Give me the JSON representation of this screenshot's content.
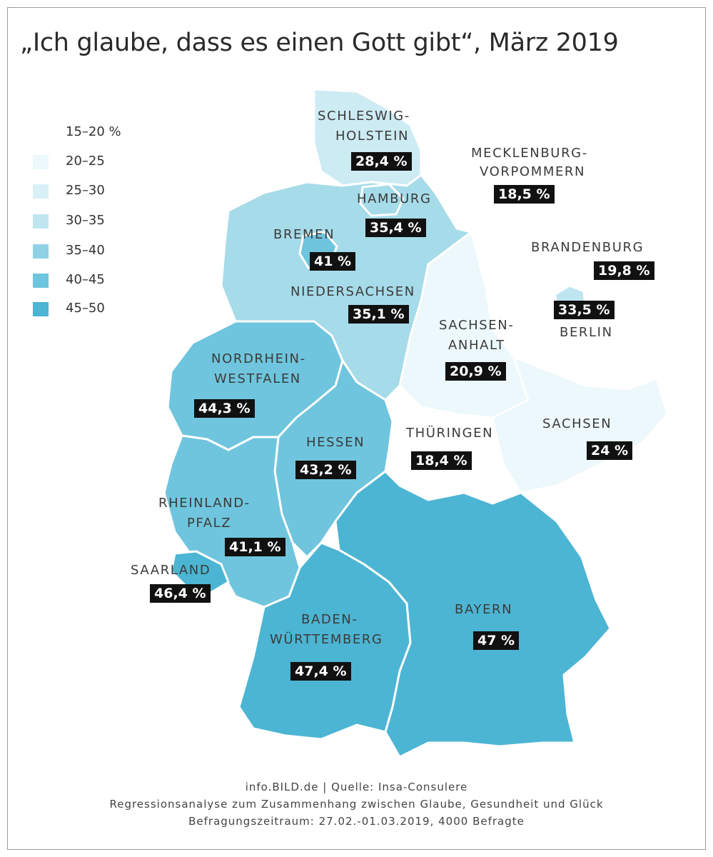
{
  "title": "„Ich glaube, dass es einen Gott gibt“, März 2019",
  "legend": [
    {
      "label": "15–20 %",
      "color": "#ffffff"
    },
    {
      "label": "20–25",
      "color": "#ecf8fb"
    },
    {
      "label": "25–30",
      "color": "#d8f0f6"
    },
    {
      "label": "30–35",
      "color": "#bfe5f0"
    },
    {
      "label": "35–40",
      "color": "#8fd2e5"
    },
    {
      "label": "40–45",
      "color": "#6fc5dd"
    },
    {
      "label": "45–50",
      "color": "#4cb5d3"
    }
  ],
  "states": {
    "schleswig_holstein": {
      "name_1": "SCHLESWIG-",
      "name_2": "HOLSTEIN",
      "value": "28,4 %",
      "color": "#cdebf3"
    },
    "mecklenburg_vorpommern": {
      "name_1": "MECKLENBURG-",
      "name_2": "VORPOMMERN",
      "value": "18,5 %",
      "color": "#ffffff"
    },
    "hamburg": {
      "name": "HAMBURG",
      "value": "35,4 %",
      "color": "#a6dbe9"
    },
    "bremen": {
      "name": "BREMEN",
      "value": "41 %",
      "color": "#6fc5dd"
    },
    "brandenburg": {
      "name": "BRANDENBURG",
      "value": "19,8 %",
      "color": "#ffffff"
    },
    "niedersachsen": {
      "name": "NIEDERSACHSEN",
      "value": "35,1 %",
      "color": "#a6dbe9"
    },
    "berlin": {
      "name": "BERLIN",
      "value": "33,5 %",
      "color": "#bfe5f0"
    },
    "sachsen_anhalt": {
      "name_1": "SACHSEN-",
      "name_2": "ANHALT",
      "value": "20,9 %",
      "color": "#ecf8fb"
    },
    "nordrhein_westfalen": {
      "name_1": "NORDRHEIN-",
      "name_2": "WESTFALEN",
      "value": "44,3 %",
      "color": "#6fc5dd"
    },
    "hessen": {
      "name": "HESSEN",
      "value": "43,2 %",
      "color": "#6fc5dd"
    },
    "thueringen": {
      "name": "THÜRINGEN",
      "value": "18,4 %",
      "color": "#ffffff"
    },
    "sachsen": {
      "name": "SACHSEN",
      "value": "24 %",
      "color": "#ecf8fb"
    },
    "rheinland_pfalz": {
      "name_1": "RHEINLAND-",
      "name_2": "PFALZ",
      "value": "41,1 %",
      "color": "#6fc5dd"
    },
    "saarland": {
      "name": "SAARLAND",
      "value": "46,4 %",
      "color": "#4cb5d3"
    },
    "baden_wuerttemberg": {
      "name_1": "BADEN-",
      "name_2": "WÜRTTEMBERG",
      "value": "47,4 %",
      "color": "#4cb5d3"
    },
    "bayern": {
      "name": "BAYERN",
      "value": "47 %",
      "color": "#4cb5d3"
    }
  },
  "footer": {
    "line1": "info.BILD.de | Quelle: Insa-Consulere",
    "line2": "Regressionsanalyse zum Zusammenhang zwischen Glaube, Gesundheit und Glück",
    "line3": "Befragungszeitraum: 27.02.-01.03.2019, 4000 Befragte"
  }
}
